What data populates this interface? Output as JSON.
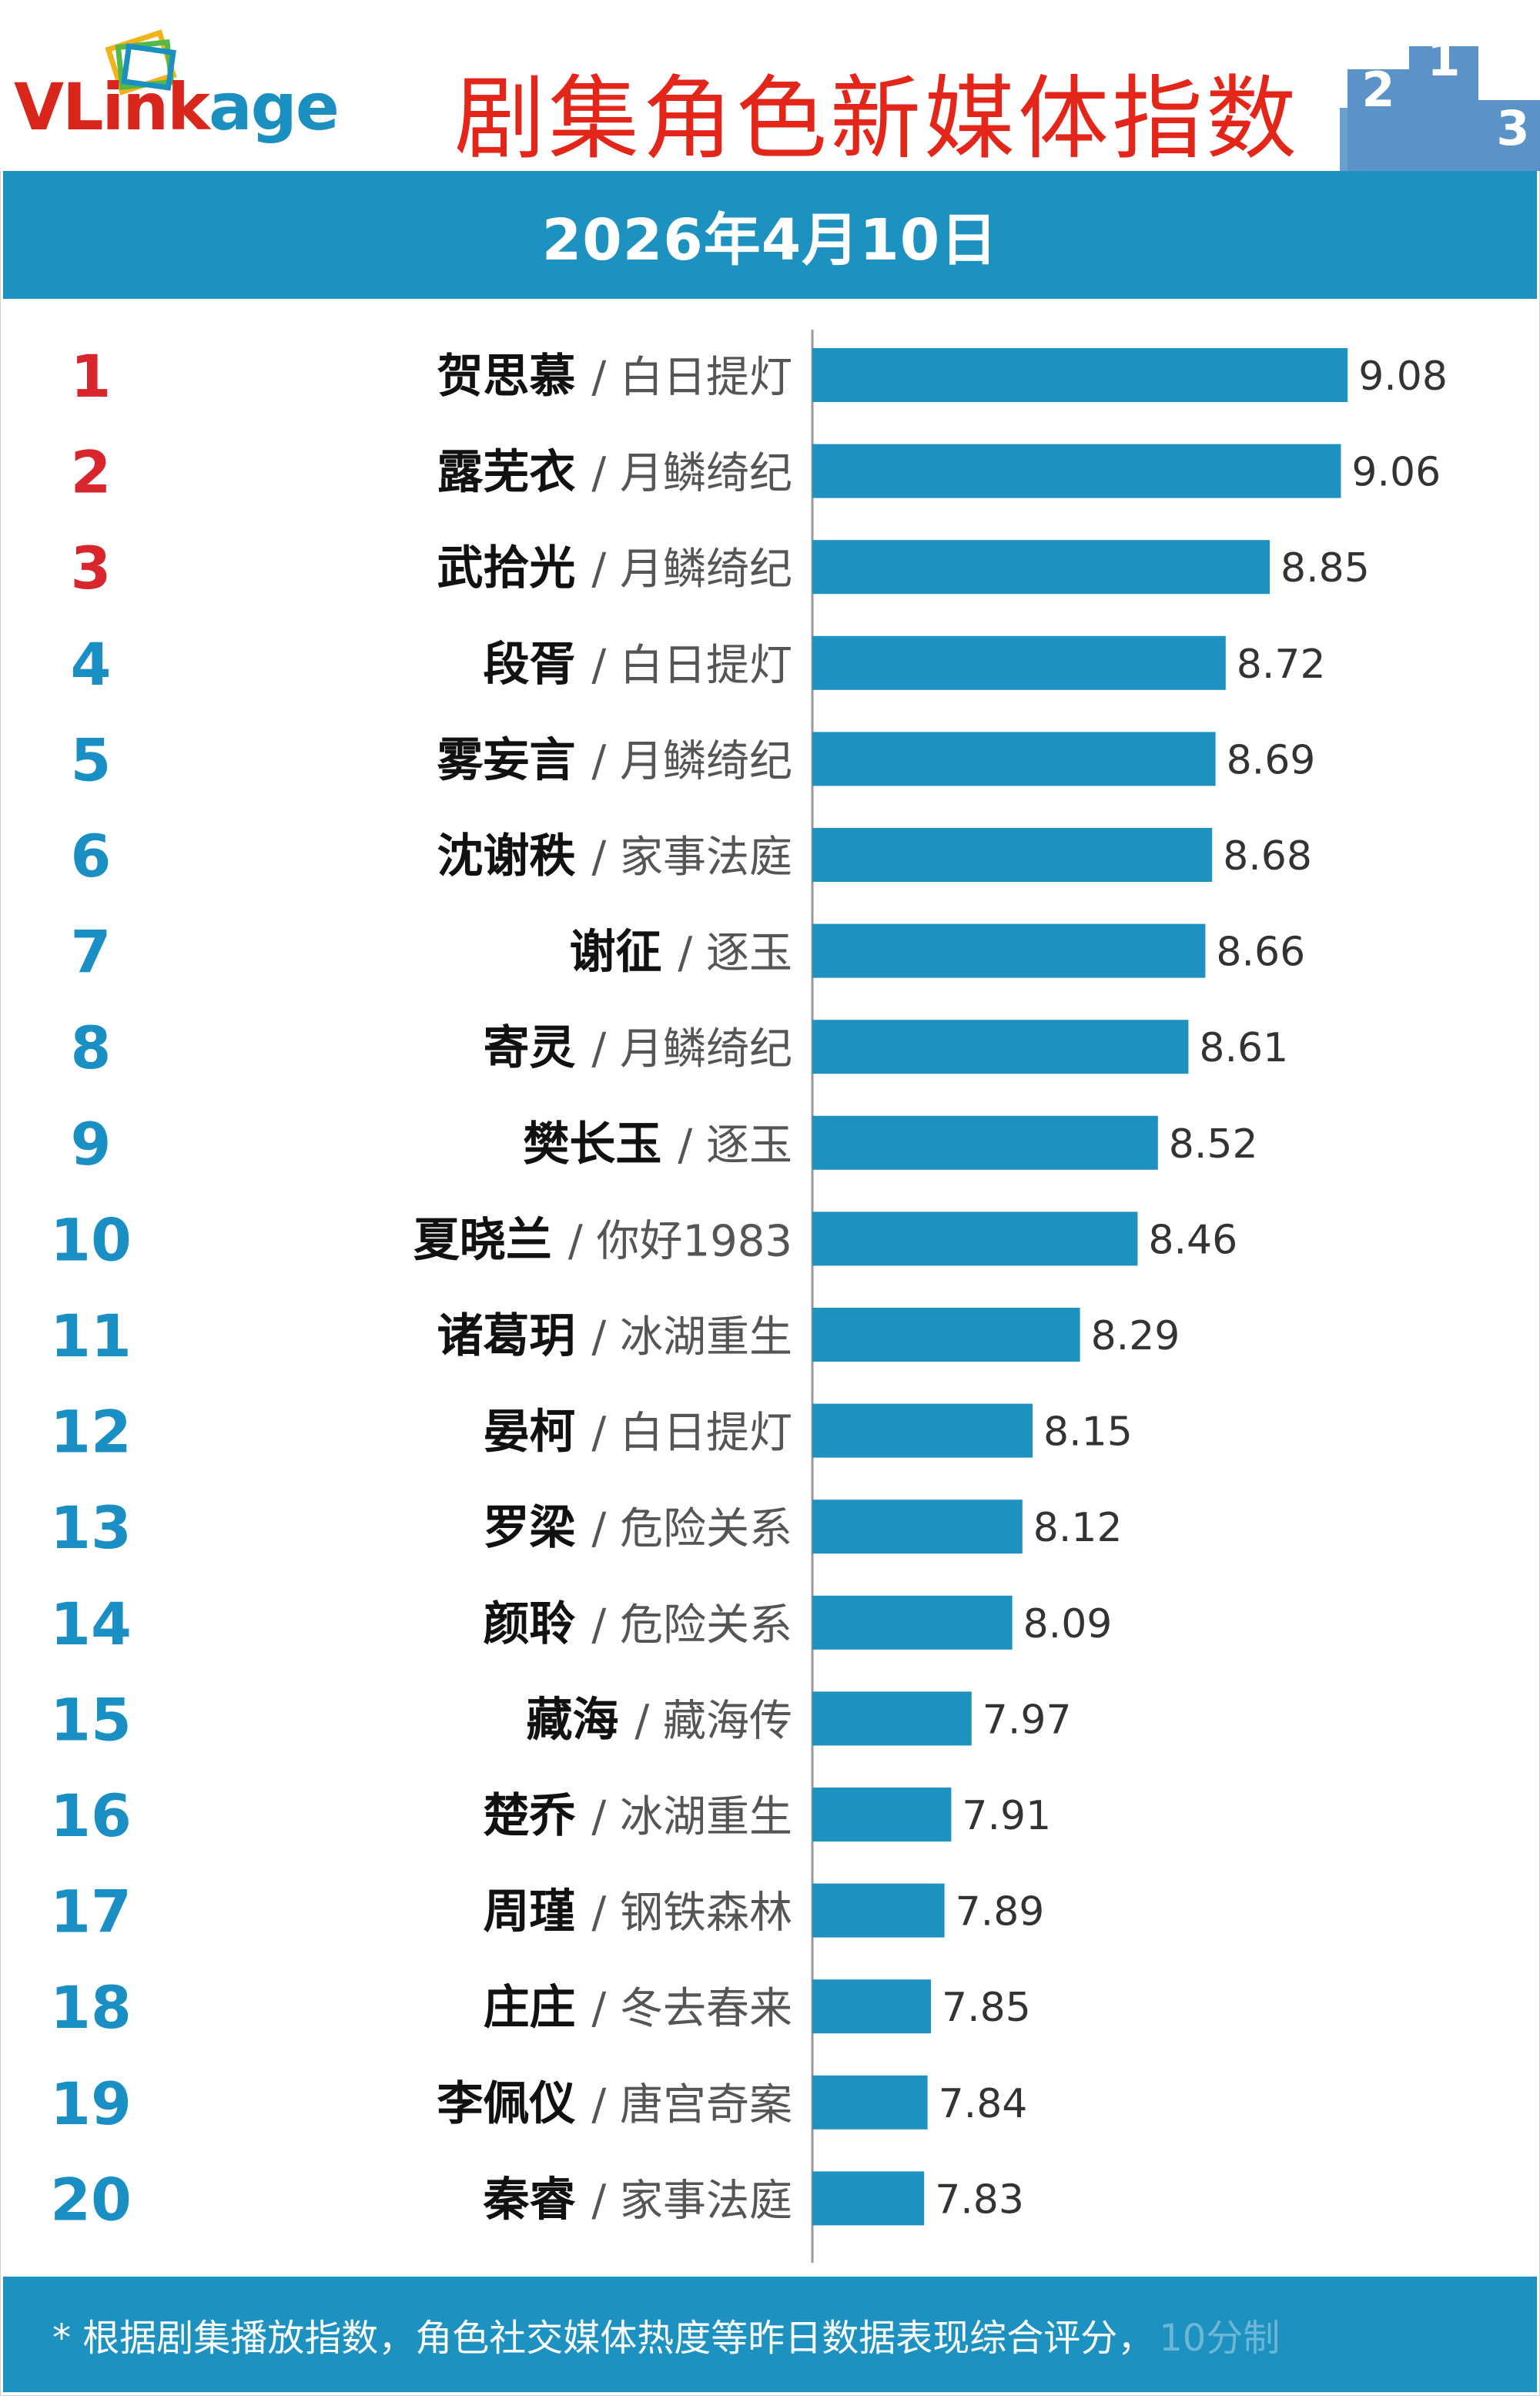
{
  "header": {
    "logo_text": "VLinkage",
    "title": "剧集角色新媒体指数"
  },
  "date": "2026年4月10日",
  "footer": {
    "note": "* 根据剧集播放指数，角色社交媒体热度等昨日数据表现综合评分，",
    "note_tail": "10分制"
  },
  "colors": {
    "bar": "#1d91c0",
    "band": "#1d91c0",
    "top_rank": "#d9262c",
    "rank": "#1a8fc4",
    "title": "#e32619"
  },
  "chart_data": {
    "type": "bar",
    "orientation": "horizontal",
    "title": "剧集角色新媒体指数",
    "xlabel": "",
    "ylabel": "",
    "xlim": [
      7.5,
      9.2
    ],
    "grid": false,
    "ranks": [
      "1",
      "2",
      "3",
      "4",
      "5",
      "6",
      "7",
      "8",
      "9",
      "10",
      "11",
      "12",
      "13",
      "14",
      "15",
      "16",
      "17",
      "18",
      "19",
      "20"
    ],
    "names": [
      "贺思慕",
      "露芜衣",
      "武拾光",
      "段胥",
      "雾妄言",
      "沈谢秩",
      "谢征",
      "寄灵",
      "樊长玉",
      "夏晓兰",
      "诸葛玥",
      "晏柯",
      "罗梁",
      "颜聆",
      "藏海",
      "楚乔",
      "周瑾",
      "庄庄",
      "李佩仪",
      "秦睿"
    ],
    "dramas": [
      "/ 白日提灯",
      "/ 月鳞绮纪",
      "/ 月鳞绮纪",
      "/ 白日提灯",
      "/ 月鳞绮纪",
      "/ 家事法庭",
      "/ 逐玉",
      "/ 月鳞绮纪",
      "/ 逐玉",
      "/ 你好1983",
      "/ 冰湖重生",
      "/ 白日提灯",
      "/ 危险关系",
      "/ 危险关系",
      "/ 藏海传",
      "/ 冰湖重生",
      "/ 钢铁森林",
      "/ 冬去春来",
      "/ 唐宫奇案",
      "/ 家事法庭"
    ],
    "values": [
      9.08,
      9.06,
      8.85,
      8.72,
      8.69,
      8.68,
      8.66,
      8.61,
      8.52,
      8.46,
      8.29,
      8.15,
      8.12,
      8.09,
      7.97,
      7.91,
      7.89,
      7.85,
      7.84,
      7.83
    ],
    "value_labels": [
      "9.08",
      "9.06",
      "8.85",
      "8.72",
      "8.69",
      "8.68",
      "8.66",
      "8.61",
      "8.52",
      "8.46",
      "8.29",
      "8.15",
      "8.12",
      "8.09",
      "7.97",
      "7.91",
      "7.89",
      "7.85",
      "7.84",
      "7.83"
    ]
  }
}
